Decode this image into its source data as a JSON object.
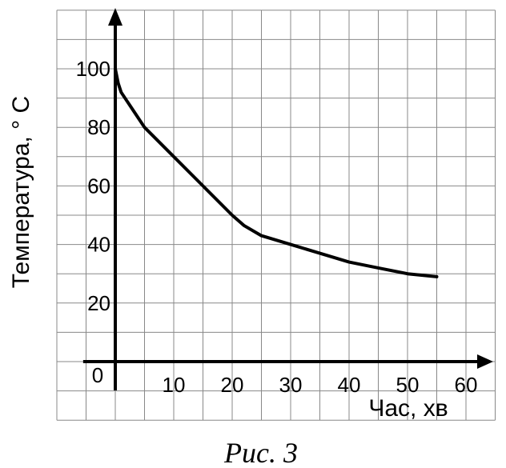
{
  "chart_data": {
    "type": "line",
    "xlabel": "Час, хв",
    "ylabel": "Температура, ° С",
    "caption": "Рис. 3",
    "origin_label": "0",
    "xlim": [
      -10,
      65
    ],
    "ylim": [
      -20,
      120
    ],
    "grid": true,
    "x_ticks": [
      10,
      20,
      30,
      40,
      50,
      60
    ],
    "y_ticks": [
      20,
      40,
      60,
      80,
      100
    ],
    "series": [
      {
        "x": [
          0,
          0.5,
          1,
          2,
          3,
          5,
          10,
          15,
          20,
          22,
          25,
          30,
          35,
          40,
          45,
          50,
          55
        ],
        "y": [
          100,
          95,
          92,
          89,
          86,
          80,
          70,
          60,
          50,
          46.5,
          43,
          40,
          37,
          34,
          32,
          30,
          29
        ]
      }
    ]
  }
}
